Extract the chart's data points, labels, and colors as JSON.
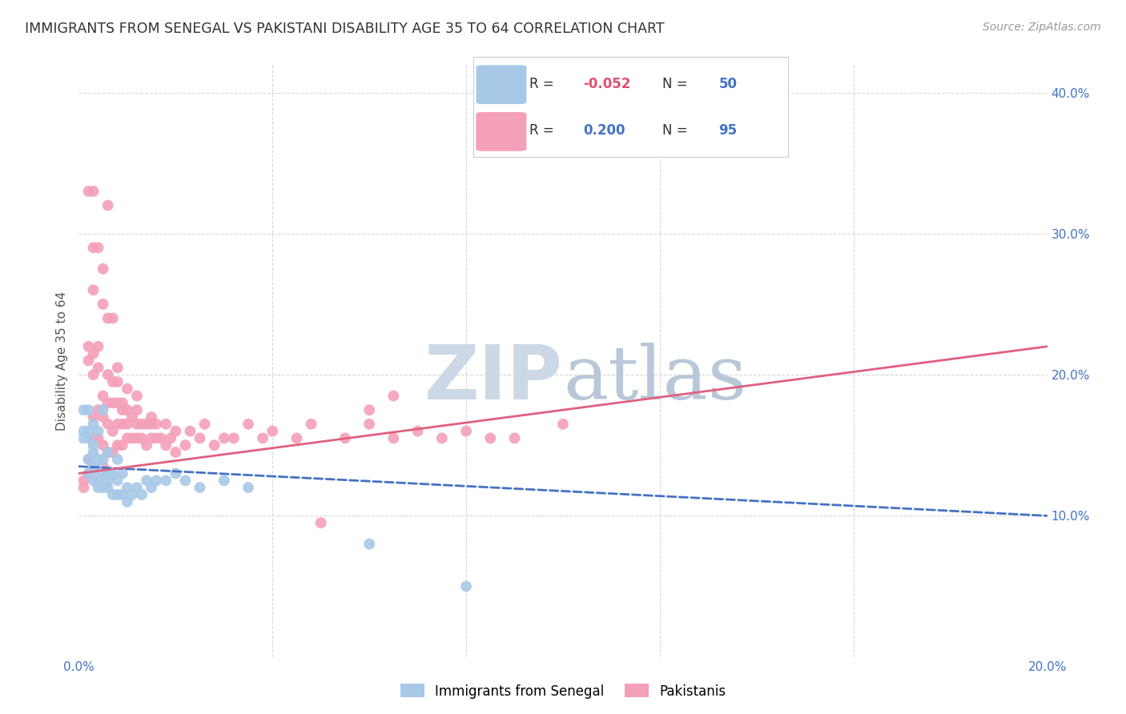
{
  "title": "IMMIGRANTS FROM SENEGAL VS PAKISTANI DISABILITY AGE 35 TO 64 CORRELATION CHART",
  "source": "Source: ZipAtlas.com",
  "ylabel": "Disability Age 35 to 64",
  "xlim": [
    0.0,
    0.2
  ],
  "ylim": [
    0.0,
    0.42
  ],
  "senegal_R": -0.052,
  "senegal_N": 50,
  "pakistan_R": 0.2,
  "pakistan_N": 95,
  "background_color": "#ffffff",
  "grid_color": "#d8d8d8",
  "senegal_color": "#a8c8e8",
  "pakistan_color": "#f4a0b8",
  "senegal_line_color": "#4472c4",
  "pakistan_line_color": "#e06080",
  "watermark_color": "#ccd8e8",
  "legend_label_senegal": "Immigrants from Senegal",
  "legend_label_pakistan": "Pakistanis",
  "senegal_x": [
    0.001,
    0.001,
    0.001,
    0.002,
    0.002,
    0.002,
    0.002,
    0.002,
    0.003,
    0.003,
    0.003,
    0.003,
    0.003,
    0.003,
    0.004,
    0.004,
    0.004,
    0.004,
    0.004,
    0.005,
    0.005,
    0.005,
    0.005,
    0.006,
    0.006,
    0.006,
    0.006,
    0.007,
    0.007,
    0.008,
    0.008,
    0.008,
    0.009,
    0.009,
    0.01,
    0.01,
    0.011,
    0.012,
    0.013,
    0.014,
    0.015,
    0.016,
    0.018,
    0.02,
    0.022,
    0.025,
    0.03,
    0.035,
    0.06,
    0.08
  ],
  "senegal_y": [
    0.155,
    0.16,
    0.175,
    0.13,
    0.14,
    0.155,
    0.16,
    0.175,
    0.125,
    0.13,
    0.135,
    0.145,
    0.15,
    0.165,
    0.12,
    0.125,
    0.135,
    0.14,
    0.16,
    0.12,
    0.13,
    0.14,
    0.175,
    0.12,
    0.125,
    0.13,
    0.145,
    0.115,
    0.13,
    0.115,
    0.125,
    0.14,
    0.115,
    0.13,
    0.11,
    0.12,
    0.115,
    0.12,
    0.115,
    0.125,
    0.12,
    0.125,
    0.125,
    0.13,
    0.125,
    0.12,
    0.125,
    0.12,
    0.08,
    0.05
  ],
  "pakistan_x": [
    0.001,
    0.001,
    0.002,
    0.002,
    0.002,
    0.002,
    0.003,
    0.003,
    0.003,
    0.003,
    0.003,
    0.004,
    0.004,
    0.004,
    0.004,
    0.004,
    0.005,
    0.005,
    0.005,
    0.005,
    0.005,
    0.006,
    0.006,
    0.006,
    0.006,
    0.007,
    0.007,
    0.007,
    0.007,
    0.008,
    0.008,
    0.008,
    0.008,
    0.009,
    0.009,
    0.009,
    0.01,
    0.01,
    0.01,
    0.011,
    0.011,
    0.012,
    0.012,
    0.012,
    0.013,
    0.013,
    0.014,
    0.014,
    0.015,
    0.015,
    0.016,
    0.016,
    0.017,
    0.018,
    0.018,
    0.019,
    0.02,
    0.02,
    0.022,
    0.023,
    0.025,
    0.026,
    0.028,
    0.03,
    0.032,
    0.035,
    0.038,
    0.04,
    0.045,
    0.048,
    0.05,
    0.055,
    0.06,
    0.065,
    0.07,
    0.075,
    0.08,
    0.085,
    0.09,
    0.1,
    0.003,
    0.004,
    0.005,
    0.006,
    0.007,
    0.008,
    0.009,
    0.01,
    0.012,
    0.015,
    0.002,
    0.003,
    0.006,
    0.06,
    0.065
  ],
  "pakistan_y": [
    0.12,
    0.125,
    0.13,
    0.14,
    0.21,
    0.22,
    0.155,
    0.17,
    0.2,
    0.215,
    0.26,
    0.135,
    0.155,
    0.175,
    0.205,
    0.22,
    0.135,
    0.15,
    0.17,
    0.185,
    0.25,
    0.145,
    0.165,
    0.18,
    0.2,
    0.145,
    0.16,
    0.18,
    0.195,
    0.15,
    0.165,
    0.18,
    0.195,
    0.15,
    0.165,
    0.18,
    0.155,
    0.165,
    0.175,
    0.155,
    0.17,
    0.155,
    0.165,
    0.175,
    0.155,
    0.165,
    0.15,
    0.165,
    0.155,
    0.165,
    0.155,
    0.165,
    0.155,
    0.15,
    0.165,
    0.155,
    0.145,
    0.16,
    0.15,
    0.16,
    0.155,
    0.165,
    0.15,
    0.155,
    0.155,
    0.165,
    0.155,
    0.16,
    0.155,
    0.165,
    0.095,
    0.155,
    0.165,
    0.155,
    0.16,
    0.155,
    0.16,
    0.155,
    0.155,
    0.165,
    0.29,
    0.29,
    0.275,
    0.24,
    0.24,
    0.205,
    0.175,
    0.19,
    0.185,
    0.17,
    0.33,
    0.33,
    0.32,
    0.175,
    0.185
  ]
}
